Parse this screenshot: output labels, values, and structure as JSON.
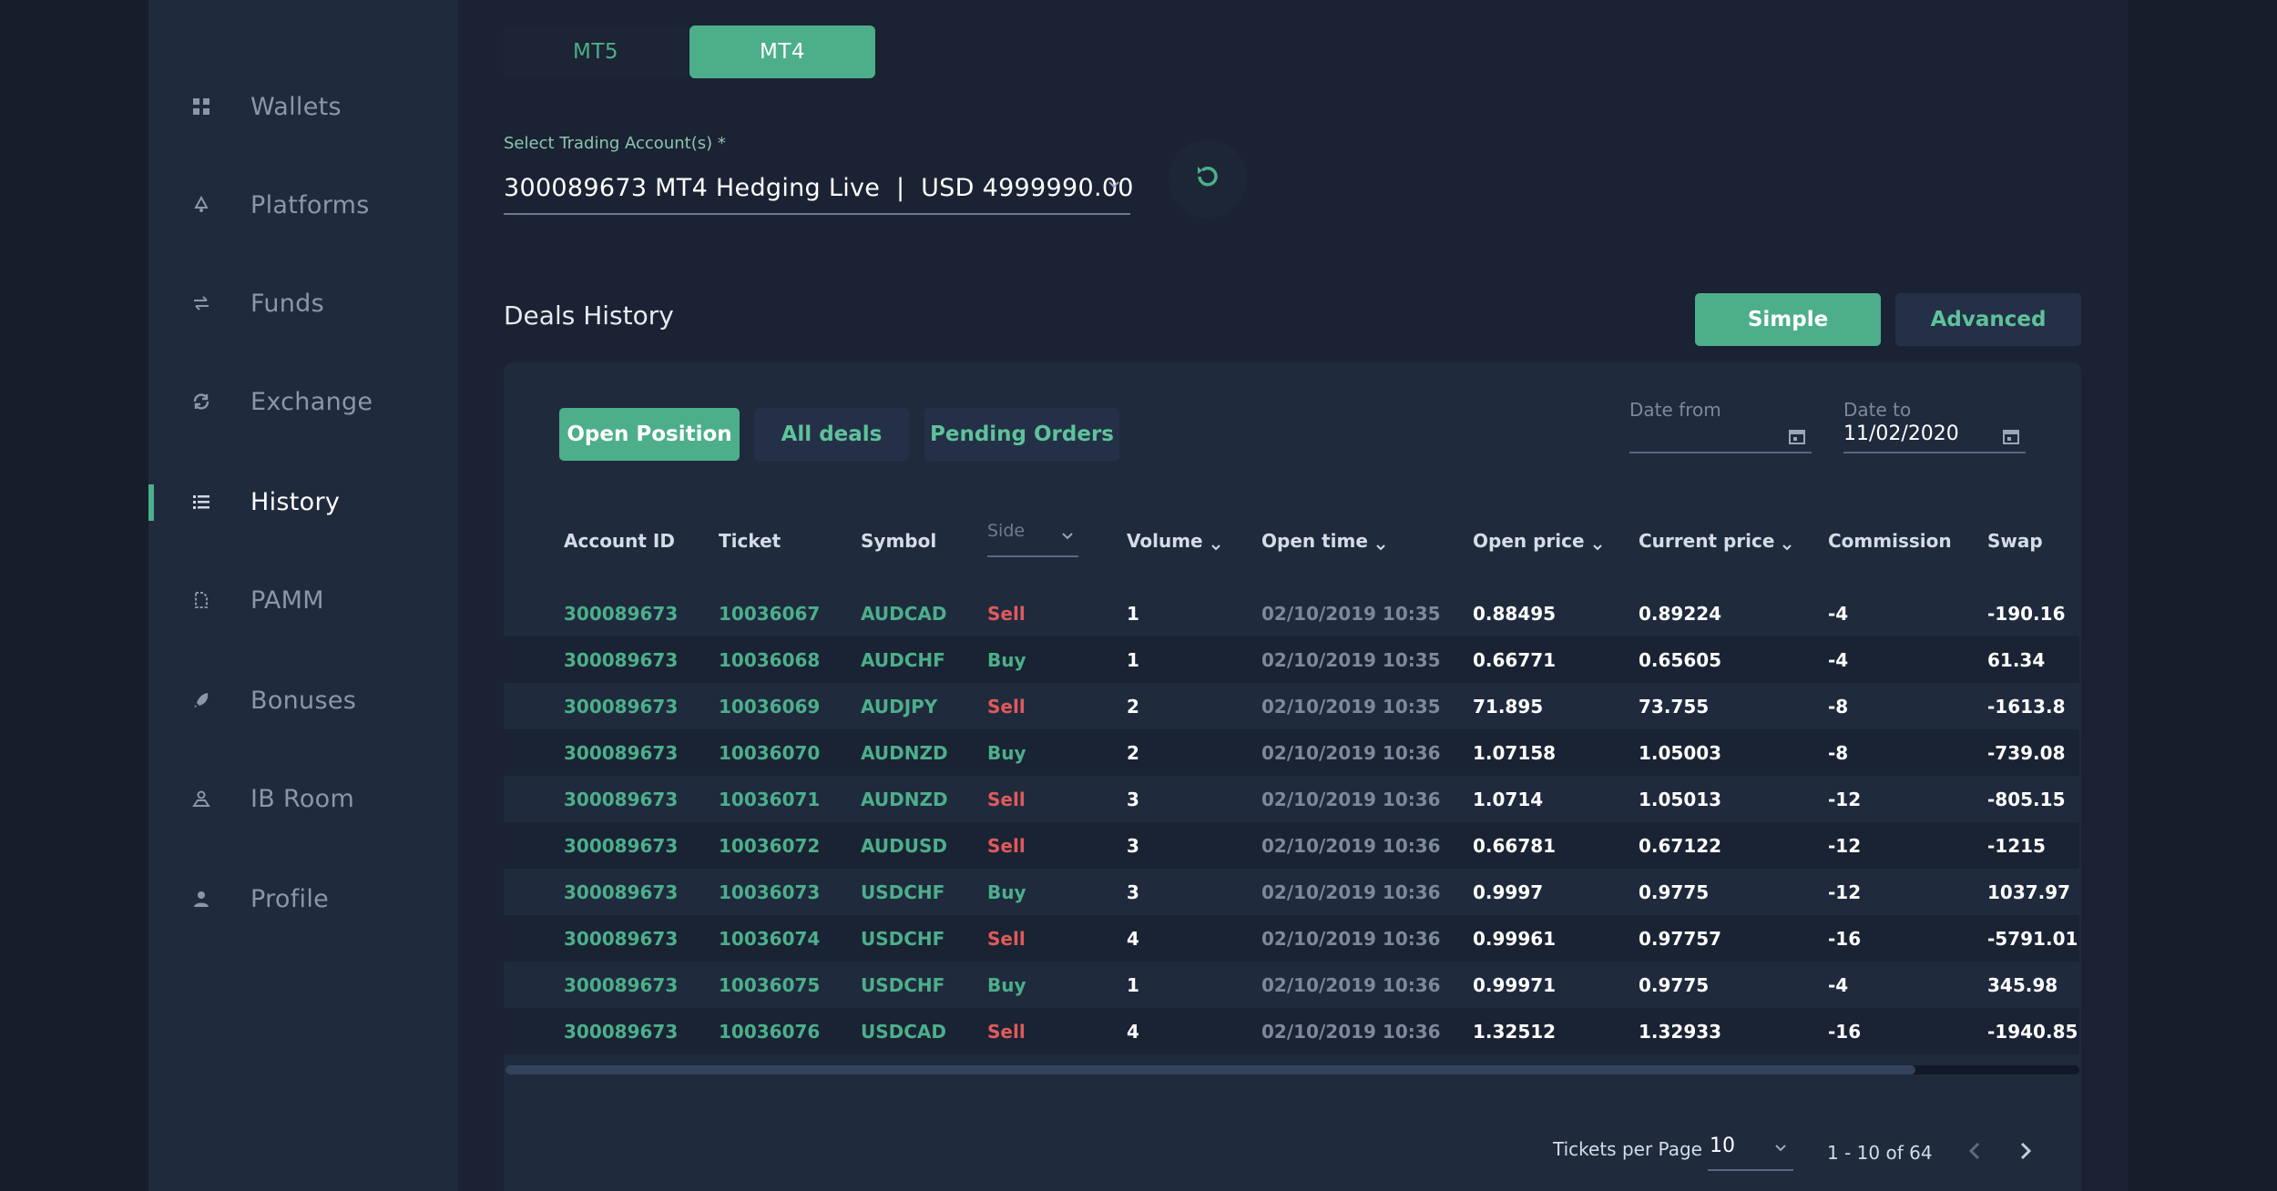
{
  "sidebar": {
    "items": [
      {
        "label": "Wallets",
        "icon": "grid-icon"
      },
      {
        "label": "Platforms",
        "icon": "recycle-icon"
      },
      {
        "label": "Funds",
        "icon": "transfer-arrows-icon"
      },
      {
        "label": "Exchange",
        "icon": "refresh-icon"
      },
      {
        "label": "History",
        "icon": "list-icon",
        "active": true
      },
      {
        "label": "PAMM",
        "icon": "document-icon"
      },
      {
        "label": "Bonuses",
        "icon": "rocket-icon"
      },
      {
        "label": "IB Room",
        "icon": "handshake-icon"
      },
      {
        "label": "Profile",
        "icon": "user-icon"
      }
    ]
  },
  "platform_tabs": {
    "mt5": "MT5",
    "mt4": "MT4"
  },
  "account": {
    "label": "Select Trading Account(s) *",
    "value": "300089673 MT4 Hedging Live  |  USD 4999990.00"
  },
  "section_title": "Deals History",
  "modes": {
    "simple": "Simple",
    "advanced": "Advanced"
  },
  "filters": {
    "open": "Open Position",
    "all": "All deals",
    "pending": "Pending Orders"
  },
  "dates": {
    "from_label": "Date from",
    "from_value": "",
    "to_label": "Date to",
    "to_value": "11/02/2020"
  },
  "table": {
    "headers": {
      "account": "Account ID",
      "ticket": "Ticket",
      "symbol": "Symbol",
      "side": "Side",
      "volume": "Volume",
      "open_time": "Open time",
      "open_price": "Open price",
      "current_price": "Current price",
      "commission": "Commission",
      "swap": "Swap"
    },
    "rows": [
      [
        "300089673",
        "10036067",
        "AUDCAD",
        "Sell",
        "1",
        "02/10/2019 10:35",
        "0.88495",
        "0.89224",
        "-4",
        "-190.16"
      ],
      [
        "300089673",
        "10036068",
        "AUDCHF",
        "Buy",
        "1",
        "02/10/2019 10:35",
        "0.66771",
        "0.65605",
        "-4",
        "61.34"
      ],
      [
        "300089673",
        "10036069",
        "AUDJPY",
        "Sell",
        "2",
        "02/10/2019 10:35",
        "71.895",
        "73.755",
        "-8",
        "-1613.8"
      ],
      [
        "300089673",
        "10036070",
        "AUDNZD",
        "Buy",
        "2",
        "02/10/2019 10:36",
        "1.07158",
        "1.05003",
        "-8",
        "-739.08"
      ],
      [
        "300089673",
        "10036071",
        "AUDNZD",
        "Sell",
        "3",
        "02/10/2019 10:36",
        "1.0714",
        "1.05013",
        "-12",
        "-805.15"
      ],
      [
        "300089673",
        "10036072",
        "AUDUSD",
        "Sell",
        "3",
        "02/10/2019 10:36",
        "0.66781",
        "0.67122",
        "-12",
        "-1215"
      ],
      [
        "300089673",
        "10036073",
        "USDCHF",
        "Buy",
        "3",
        "02/10/2019 10:36",
        "0.9997",
        "0.9775",
        "-12",
        "1037.97"
      ],
      [
        "300089673",
        "10036074",
        "USDCHF",
        "Sell",
        "4",
        "02/10/2019 10:36",
        "0.99961",
        "0.97757",
        "-16",
        "-5791.01"
      ],
      [
        "300089673",
        "10036075",
        "USDCHF",
        "Buy",
        "1",
        "02/10/2019 10:36",
        "0.99971",
        "0.9775",
        "-4",
        "345.98"
      ],
      [
        "300089673",
        "10036076",
        "USDCAD",
        "Sell",
        "4",
        "02/10/2019 10:36",
        "1.32512",
        "1.32933",
        "-16",
        "-1940.85"
      ]
    ]
  },
  "pagination": {
    "per_page_label": "Tickets per Page",
    "per_page": "10",
    "range": "1 - 10 of 64"
  },
  "colors": {
    "accent": "#4caf8a",
    "sell": "#e05a5a",
    "background": "#1a2233",
    "sidebar": "#1f2a3d"
  }
}
